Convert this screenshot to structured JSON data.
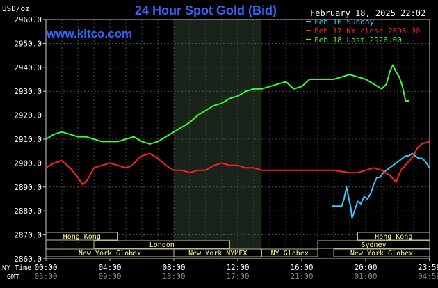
{
  "chart_data": {
    "type": "line",
    "title": "24 Hour Spot Gold (Bid)",
    "y_unit_label": "USD/oz",
    "watermark": "www.kitco.com",
    "timestamp": "February 18, 2025 22:02",
    "ylim": [
      2860,
      2960
    ],
    "xlim": [
      0,
      24
    ],
    "y_ticks": [
      "2960.0",
      "2950.0",
      "2940.0",
      "2930.0",
      "2920.0",
      "2910.0",
      "2900.0",
      "2890.0",
      "2880.0",
      "2870.0",
      "2860.0"
    ],
    "y_tick_values": [
      2960,
      2950,
      2940,
      2930,
      2920,
      2910,
      2900,
      2890,
      2880,
      2870,
      2860
    ],
    "x_tick_values": [
      0,
      4,
      8,
      12,
      16,
      20,
      23.983
    ],
    "x_ticks_ny": [
      "00:00",
      "04:00",
      "08:00",
      "12:00",
      "16:00",
      "20:00",
      "23:59"
    ],
    "x_ticks_gmt": [
      "05:00",
      "09:00",
      "13:00",
      "17:00",
      "21:00",
      "01:00",
      "04:59"
    ],
    "row_label_ny": "NY Time",
    "row_label_gmt": "GMT",
    "highlight_band": [
      8,
      13.5
    ],
    "grid": true,
    "legend_position": "top-right",
    "sessions": [
      {
        "label": "Hong Kong",
        "start": 0,
        "end": 4.5
      },
      {
        "label": "Hong Kong",
        "start": 19.5,
        "end": 24
      },
      {
        "label": "London",
        "start": 3,
        "end": 11.5
      },
      {
        "label": "Sydney",
        "start": 17,
        "end": 24
      },
      {
        "label": "New York Globex",
        "start": 0,
        "end": 8
      },
      {
        "label": "New York NYMEX",
        "start": 8,
        "end": 13.5
      },
      {
        "label": "NY Globex",
        "start": 13.5,
        "end": 17
      },
      {
        "label": "New York Globex",
        "start": 18,
        "end": 24
      }
    ],
    "series": [
      {
        "name": "Feb 16 Sunday",
        "color": "#33ccff",
        "points": [
          [
            17.9,
            2882
          ],
          [
            18.5,
            2882
          ],
          [
            18.65,
            2885
          ],
          [
            18.8,
            2890
          ],
          [
            18.95,
            2885
          ],
          [
            19.05,
            2882
          ],
          [
            19.15,
            2877
          ],
          [
            19.3,
            2880
          ],
          [
            19.5,
            2884
          ],
          [
            19.7,
            2883
          ],
          [
            19.9,
            2886
          ],
          [
            20.1,
            2885
          ],
          [
            20.3,
            2887
          ],
          [
            20.5,
            2891
          ],
          [
            20.7,
            2894
          ],
          [
            20.9,
            2894
          ],
          [
            21.1,
            2896
          ],
          [
            21.3,
            2897
          ],
          [
            21.5,
            2898
          ],
          [
            21.7,
            2899
          ],
          [
            21.9,
            2900
          ],
          [
            22.1,
            2901
          ],
          [
            22.3,
            2902
          ],
          [
            22.5,
            2903
          ],
          [
            22.7,
            2903
          ],
          [
            22.9,
            2904
          ],
          [
            23.1,
            2903
          ],
          [
            23.3,
            2902
          ],
          [
            23.5,
            2902
          ],
          [
            23.7,
            2901
          ],
          [
            23.9,
            2899
          ],
          [
            24.0,
            2898
          ]
        ]
      },
      {
        "name": "Feb 17 NY close 2898.00",
        "color": "#ff2020",
        "points": [
          [
            0,
            2898
          ],
          [
            0.5,
            2900
          ],
          [
            1,
            2901
          ],
          [
            1.5,
            2898
          ],
          [
            2,
            2894
          ],
          [
            2.3,
            2891
          ],
          [
            2.6,
            2893
          ],
          [
            3,
            2898
          ],
          [
            3.5,
            2899
          ],
          [
            4,
            2900
          ],
          [
            4.5,
            2899
          ],
          [
            5,
            2898
          ],
          [
            5.4,
            2899
          ],
          [
            5.8,
            2902
          ],
          [
            6,
            2903
          ],
          [
            6.5,
            2904
          ],
          [
            7,
            2902
          ],
          [
            7.5,
            2899
          ],
          [
            8,
            2897
          ],
          [
            8.5,
            2897
          ],
          [
            9,
            2896
          ],
          [
            9.5,
            2897
          ],
          [
            10,
            2897
          ],
          [
            10.5,
            2899
          ],
          [
            11,
            2900
          ],
          [
            11.5,
            2899
          ],
          [
            12,
            2899
          ],
          [
            12.5,
            2898
          ],
          [
            13,
            2898
          ],
          [
            13.5,
            2897
          ],
          [
            14,
            2897
          ],
          [
            14.5,
            2897
          ],
          [
            15,
            2897
          ],
          [
            15.5,
            2897
          ],
          [
            16,
            2897
          ],
          [
            17,
            2897
          ],
          [
            18,
            2897
          ],
          [
            19,
            2896
          ],
          [
            19.5,
            2896
          ],
          [
            20,
            2897
          ],
          [
            20.5,
            2898
          ],
          [
            21,
            2897
          ],
          [
            21.5,
            2895
          ],
          [
            21.9,
            2892
          ],
          [
            22.2,
            2897
          ],
          [
            22.6,
            2900
          ],
          [
            23,
            2903
          ],
          [
            23.2,
            2906
          ],
          [
            23.5,
            2908
          ],
          [
            24,
            2909
          ]
        ]
      },
      {
        "name": "Feb 18 Last 2926.00",
        "color": "#33ff33",
        "points": [
          [
            0,
            2910
          ],
          [
            0.5,
            2912
          ],
          [
            1,
            2913
          ],
          [
            1.5,
            2912
          ],
          [
            2,
            2911
          ],
          [
            2.5,
            2911
          ],
          [
            3,
            2910
          ],
          [
            3.5,
            2909
          ],
          [
            4,
            2909
          ],
          [
            4.5,
            2909
          ],
          [
            5,
            2910
          ],
          [
            5.5,
            2911
          ],
          [
            6,
            2909
          ],
          [
            6.5,
            2908
          ],
          [
            7,
            2909
          ],
          [
            7.5,
            2911
          ],
          [
            8,
            2913
          ],
          [
            8.5,
            2915
          ],
          [
            9,
            2917
          ],
          [
            9.5,
            2920
          ],
          [
            10,
            2922
          ],
          [
            10.5,
            2924
          ],
          [
            11,
            2925
          ],
          [
            11.5,
            2927
          ],
          [
            12,
            2928
          ],
          [
            12.5,
            2930
          ],
          [
            13,
            2931
          ],
          [
            13.5,
            2931
          ],
          [
            14,
            2932
          ],
          [
            14.5,
            2933
          ],
          [
            15,
            2934
          ],
          [
            15.5,
            2931
          ],
          [
            16,
            2932
          ],
          [
            16.5,
            2935
          ],
          [
            17,
            2935
          ],
          [
            17.5,
            2935
          ],
          [
            18,
            2935
          ],
          [
            18.5,
            2936
          ],
          [
            19,
            2937
          ],
          [
            19.5,
            2936
          ],
          [
            20,
            2935
          ],
          [
            20.5,
            2933
          ],
          [
            21,
            2931
          ],
          [
            21.3,
            2933
          ],
          [
            21.5,
            2938
          ],
          [
            21.7,
            2941
          ],
          [
            21.9,
            2938
          ],
          [
            22.1,
            2936
          ],
          [
            22.3,
            2932
          ],
          [
            22.5,
            2926
          ],
          [
            22.7,
            2926
          ]
        ]
      }
    ]
  }
}
